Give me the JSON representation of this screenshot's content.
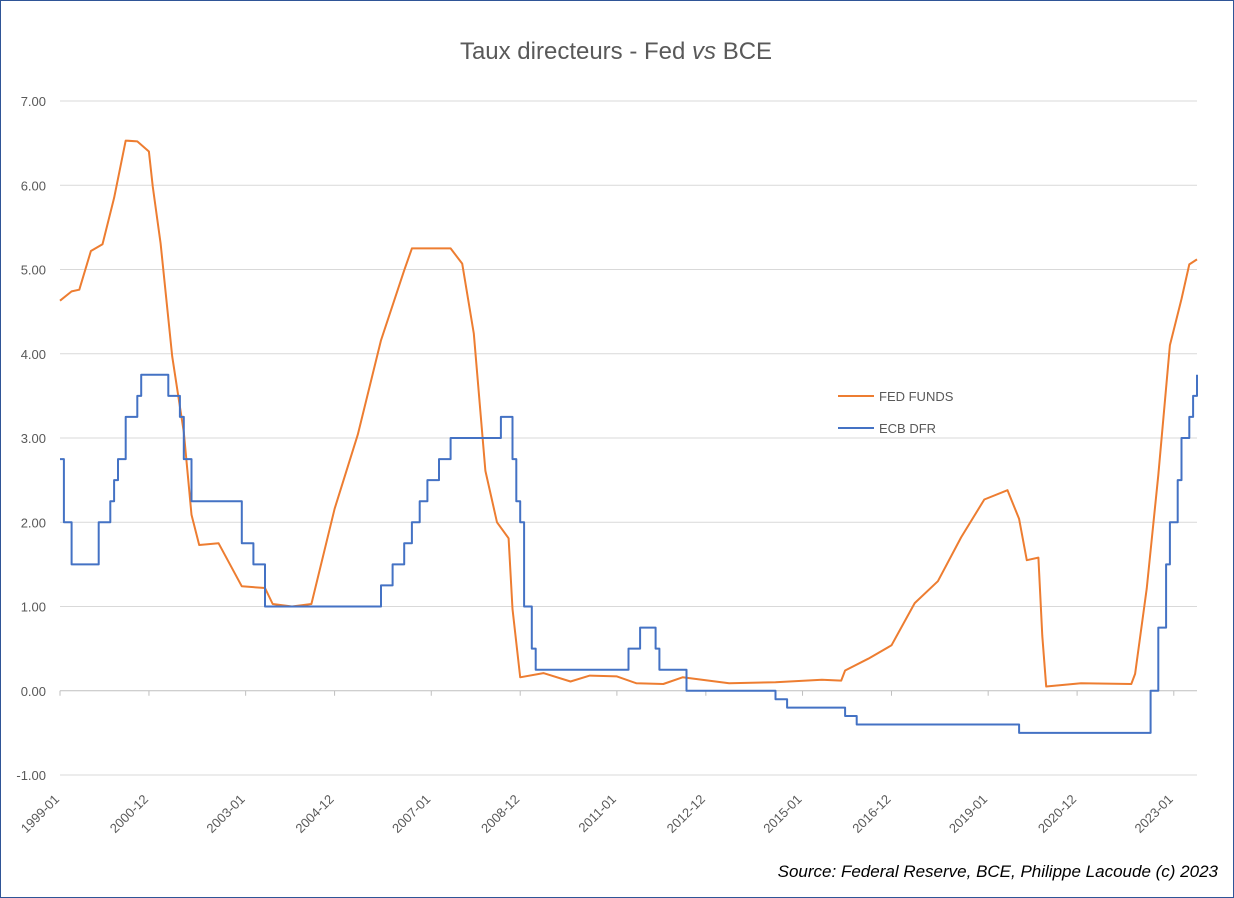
{
  "title": {
    "prefix": "Taux directeurs - Fed ",
    "italic": "vs",
    "suffix": " BCE"
  },
  "source": "Source: Federal Reserve, BCE, Philippe Lacoude (c) 2023",
  "colors": {
    "fed": "#ed7d31",
    "ecb": "#4472c4",
    "grid": "#d9d9d9",
    "axis": "#bfbfbf"
  },
  "chart_data": {
    "type": "line",
    "ylim": [
      -1,
      7
    ],
    "xlim": [
      "1999-01",
      "2023-07"
    ],
    "y_ticks": [
      "-1.00",
      "0.00",
      "1.00",
      "2.00",
      "3.00",
      "4.00",
      "5.00",
      "6.00",
      "7.00"
    ],
    "x_ticks": [
      "1999-01",
      "2000-12",
      "2003-01",
      "2004-12",
      "2007-01",
      "2008-12",
      "2011-01",
      "2012-12",
      "2015-01",
      "2016-12",
      "2019-01",
      "2020-12",
      "2023-01"
    ],
    "grid": "horizontal",
    "legend": "right",
    "series": [
      {
        "name": "FED FUNDS",
        "step": false,
        "points": [
          [
            "1999-01",
            4.63
          ],
          [
            "1999-04",
            4.74
          ],
          [
            "1999-06",
            4.76
          ],
          [
            "1999-09",
            5.22
          ],
          [
            "1999-12",
            5.3
          ],
          [
            "2000-03",
            5.85
          ],
          [
            "2000-06",
            6.53
          ],
          [
            "2000-09",
            6.52
          ],
          [
            "2000-12",
            6.4
          ],
          [
            "2001-01",
            5.98
          ],
          [
            "2001-03",
            5.31
          ],
          [
            "2001-06",
            3.97
          ],
          [
            "2001-09",
            3.07
          ],
          [
            "2001-11",
            2.09
          ],
          [
            "2002-01",
            1.73
          ],
          [
            "2002-06",
            1.75
          ],
          [
            "2002-12",
            1.24
          ],
          [
            "2003-06",
            1.22
          ],
          [
            "2003-08",
            1.03
          ],
          [
            "2004-01",
            1.0
          ],
          [
            "2004-06",
            1.03
          ],
          [
            "2004-12",
            2.16
          ],
          [
            "2005-06",
            3.04
          ],
          [
            "2005-12",
            4.16
          ],
          [
            "2006-06",
            4.99
          ],
          [
            "2006-08",
            5.25
          ],
          [
            "2007-06",
            5.25
          ],
          [
            "2007-09",
            5.07
          ],
          [
            "2007-12",
            4.24
          ],
          [
            "2008-03",
            2.61
          ],
          [
            "2008-06",
            2.0
          ],
          [
            "2008-09",
            1.81
          ],
          [
            "2008-10",
            0.97
          ],
          [
            "2008-12",
            0.16
          ],
          [
            "2009-06",
            0.21
          ],
          [
            "2010-01",
            0.11
          ],
          [
            "2010-06",
            0.18
          ],
          [
            "2011-01",
            0.17
          ],
          [
            "2011-06",
            0.09
          ],
          [
            "2012-01",
            0.08
          ],
          [
            "2012-06",
            0.16
          ],
          [
            "2013-06",
            0.09
          ],
          [
            "2014-06",
            0.1
          ],
          [
            "2015-06",
            0.13
          ],
          [
            "2015-11",
            0.12
          ],
          [
            "2015-12",
            0.24
          ],
          [
            "2016-06",
            0.38
          ],
          [
            "2016-12",
            0.54
          ],
          [
            "2017-06",
            1.04
          ],
          [
            "2017-12",
            1.3
          ],
          [
            "2018-06",
            1.82
          ],
          [
            "2018-12",
            2.27
          ],
          [
            "2019-06",
            2.38
          ],
          [
            "2019-09",
            2.04
          ],
          [
            "2019-11",
            1.55
          ],
          [
            "2020-02",
            1.58
          ],
          [
            "2020-03",
            0.65
          ],
          [
            "2020-04",
            0.05
          ],
          [
            "2021-01",
            0.09
          ],
          [
            "2022-02",
            0.08
          ],
          [
            "2022-03",
            0.2
          ],
          [
            "2022-06",
            1.21
          ],
          [
            "2022-09",
            2.56
          ],
          [
            "2022-12",
            4.1
          ],
          [
            "2023-03",
            4.65
          ],
          [
            "2023-05",
            5.06
          ],
          [
            "2023-07",
            5.12
          ]
        ]
      },
      {
        "name": "ECB DFR",
        "step": true,
        "points": [
          [
            "1999-01",
            2.75
          ],
          [
            "1999-02",
            2.0
          ],
          [
            "1999-04",
            1.5
          ],
          [
            "1999-11",
            2.0
          ],
          [
            "2000-02",
            2.25
          ],
          [
            "2000-03",
            2.5
          ],
          [
            "2000-04",
            2.75
          ],
          [
            "2000-06",
            3.25
          ],
          [
            "2000-09",
            3.5
          ],
          [
            "2000-10",
            3.75
          ],
          [
            "2001-05",
            3.5
          ],
          [
            "2001-08",
            3.25
          ],
          [
            "2001-09",
            2.75
          ],
          [
            "2001-11",
            2.25
          ],
          [
            "2002-12",
            1.75
          ],
          [
            "2003-03",
            1.5
          ],
          [
            "2003-06",
            1.0
          ],
          [
            "2005-12",
            1.25
          ],
          [
            "2006-03",
            1.5
          ],
          [
            "2006-06",
            1.75
          ],
          [
            "2006-08",
            2.0
          ],
          [
            "2006-10",
            2.25
          ],
          [
            "2006-12",
            2.5
          ],
          [
            "2007-03",
            2.75
          ],
          [
            "2007-06",
            3.0
          ],
          [
            "2008-07",
            3.25
          ],
          [
            "2008-10",
            2.75
          ],
          [
            "2008-11",
            2.25
          ],
          [
            "2008-12",
            2.0
          ],
          [
            "2009-01",
            1.0
          ],
          [
            "2009-03",
            0.5
          ],
          [
            "2009-04",
            0.25
          ],
          [
            "2011-04",
            0.5
          ],
          [
            "2011-07",
            0.75
          ],
          [
            "2011-11",
            0.5
          ],
          [
            "2011-12",
            0.25
          ],
          [
            "2012-07",
            0.0
          ],
          [
            "2014-06",
            -0.1
          ],
          [
            "2014-09",
            -0.2
          ],
          [
            "2015-12",
            -0.3
          ],
          [
            "2016-03",
            -0.4
          ],
          [
            "2019-09",
            -0.5
          ],
          [
            "2022-07",
            0.0
          ],
          [
            "2022-09",
            0.75
          ],
          [
            "2022-11",
            1.5
          ],
          [
            "2022-12",
            2.0
          ],
          [
            "2023-02",
            2.5
          ],
          [
            "2023-03",
            3.0
          ],
          [
            "2023-05",
            3.25
          ],
          [
            "2023-06",
            3.5
          ],
          [
            "2023-07",
            3.75
          ]
        ]
      }
    ]
  }
}
